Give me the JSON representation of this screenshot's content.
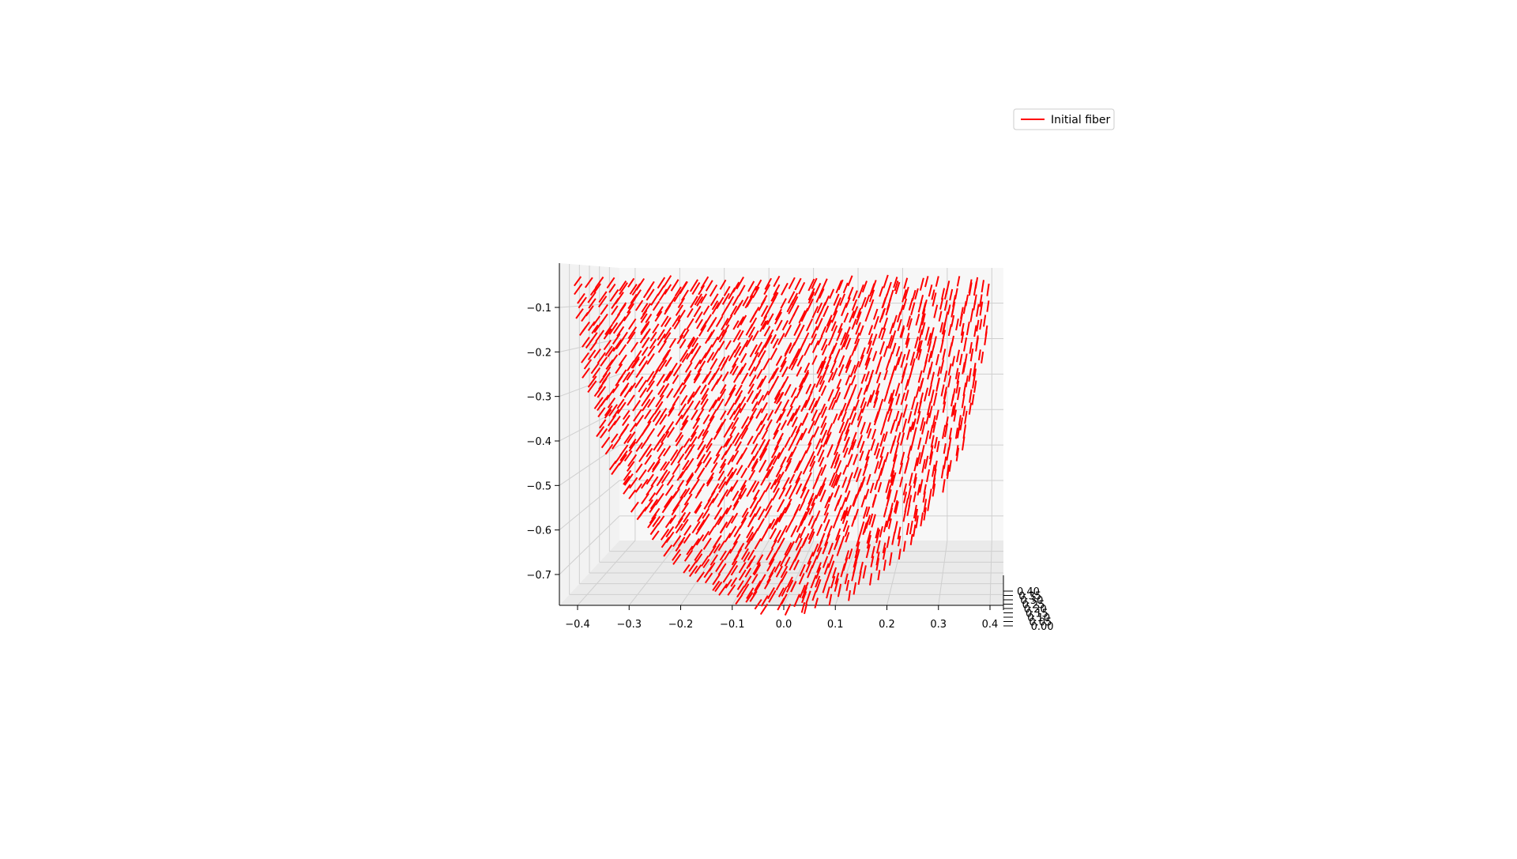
{
  "chart_data": {
    "type": "line",
    "projection": "3d",
    "title": "",
    "xlabel": "",
    "ylabel": "",
    "zlabel": "",
    "grid": true,
    "legend": {
      "placement": "top-right",
      "entries": [
        "Initial fiber"
      ]
    },
    "series": [
      {
        "name": "Initial fiber",
        "color": "#ff0000",
        "description": "many short straight fiber segments sampled over a half-ellipsoid (paraboloid-like) surface"
      }
    ],
    "axes": {
      "x": {
        "ticks": [
          -0.4,
          -0.3,
          -0.2,
          -0.1,
          0.0,
          0.1,
          0.2,
          0.3,
          0.4
        ],
        "tick_labels": [
          "−0.4",
          "−0.3",
          "−0.2",
          "−0.1",
          "0.0",
          "0.1",
          "0.2",
          "0.3",
          "0.4"
        ],
        "range": [
          -0.44,
          0.42
        ]
      },
      "z": {
        "ticks": [
          -0.1,
          -0.2,
          -0.3,
          -0.4,
          -0.5,
          -0.6,
          -0.7
        ],
        "tick_labels": [
          "−0.1",
          "−0.2",
          "−0.3",
          "−0.4",
          "−0.5",
          "−0.6",
          "−0.7"
        ],
        "range": [
          -0.78,
          -0.02
        ]
      },
      "y": {
        "ticks": [
          0.4,
          0.35,
          0.3,
          0.25,
          0.2,
          0.15,
          0.1,
          0.05,
          0.0
        ],
        "tick_labels": [
          "0.40",
          "0.35",
          "0.30",
          "0.25",
          "0.20",
          "0.15",
          "0.10",
          "0.05",
          "0.00"
        ],
        "range": [
          0.0,
          0.42
        ]
      }
    },
    "surface": {
      "x_half_width": 0.4,
      "z_top": -0.04,
      "z_bottom": -0.78
    }
  }
}
